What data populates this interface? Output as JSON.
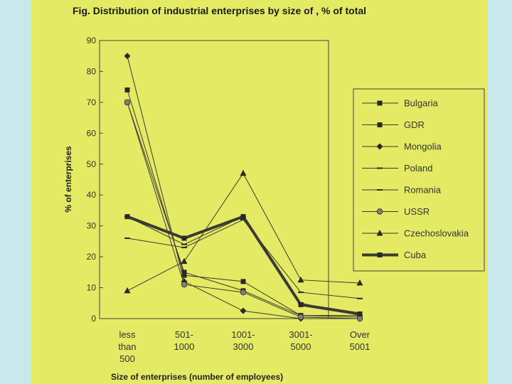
{
  "chart_data": {
    "type": "line",
    "title": "Fig. Distribution of industrial enterprises by size of , % of total",
    "xlabel": "Size of enterprises (number of employees)",
    "ylabel": "% of enterprises",
    "categories": [
      [
        "less",
        "than",
        "500"
      ],
      [
        "501-",
        "1000"
      ],
      [
        "1001-",
        "3000"
      ],
      [
        "3001-",
        "5000"
      ],
      [
        "Over",
        "5001"
      ]
    ],
    "ylim": [
      0,
      90
    ],
    "yticks": [
      0,
      10,
      20,
      30,
      40,
      50,
      60,
      70,
      80,
      90
    ],
    "legend_position": "right",
    "series": [
      {
        "name": "Bulgaria",
        "marker": "square",
        "values": [
          74,
          14,
          12,
          1,
          1
        ]
      },
      {
        "name": "GDR",
        "marker": "square",
        "values": [
          70,
          15,
          9,
          1,
          0.5
        ]
      },
      {
        "name": "Mongolia",
        "marker": "diamond",
        "values": [
          85,
          12,
          2.5,
          0,
          0
        ]
      },
      {
        "name": "Poland",
        "marker": "dash",
        "values": [
          26,
          23,
          32,
          8.5,
          6.5
        ]
      },
      {
        "name": "Romania",
        "marker": "dash",
        "values": [
          33,
          24,
          33,
          5,
          1
        ]
      },
      {
        "name": "USSR",
        "marker": "circle",
        "values": [
          70,
          11,
          8.5,
          0.5,
          0
        ]
      },
      {
        "name": "Czechoslovakia",
        "marker": "triangle",
        "values": [
          9,
          18.5,
          47,
          12.5,
          11.5
        ]
      },
      {
        "name": "Cuba",
        "marker": "square",
        "bold": true,
        "values": [
          33,
          26,
          33,
          4.5,
          1.5
        ]
      }
    ]
  }
}
